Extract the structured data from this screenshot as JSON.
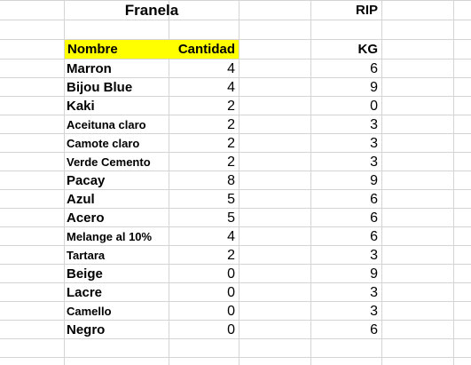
{
  "sheet": {
    "title": "Franela",
    "rip_label": "RIP",
    "kg_label": "KG",
    "col_nombre": "Nombre",
    "col_cantidad": "Cantidad",
    "highlight_color": "#ffff00",
    "rows": [
      {
        "name": "Marron",
        "cantidad": "4",
        "kg": "6"
      },
      {
        "name": "Bijou Blue",
        "cantidad": "4",
        "kg": "9"
      },
      {
        "name": "Kaki",
        "cantidad": "2",
        "kg": "0"
      },
      {
        "name": "Aceituna claro",
        "cantidad": "2",
        "kg": "3"
      },
      {
        "name": "Camote claro",
        "cantidad": "2",
        "kg": "3"
      },
      {
        "name": "Verde Cemento",
        "cantidad": "2",
        "kg": "3"
      },
      {
        "name": "Pacay",
        "cantidad": "8",
        "kg": "9"
      },
      {
        "name": "Azul",
        "cantidad": "5",
        "kg": "6"
      },
      {
        "name": "Acero",
        "cantidad": "5",
        "kg": "6"
      },
      {
        "name": "Melange al 10%",
        "cantidad": "4",
        "kg": "6"
      },
      {
        "name": "Tartara",
        "cantidad": "2",
        "kg": "3"
      },
      {
        "name": "Beige",
        "cantidad": "0",
        "kg": "9"
      },
      {
        "name": "Lacre",
        "cantidad": "0",
        "kg": "3"
      },
      {
        "name": "Camello",
        "cantidad": "0",
        "kg": "3"
      },
      {
        "name": "Negro",
        "cantidad": "0",
        "kg": "6"
      }
    ]
  }
}
